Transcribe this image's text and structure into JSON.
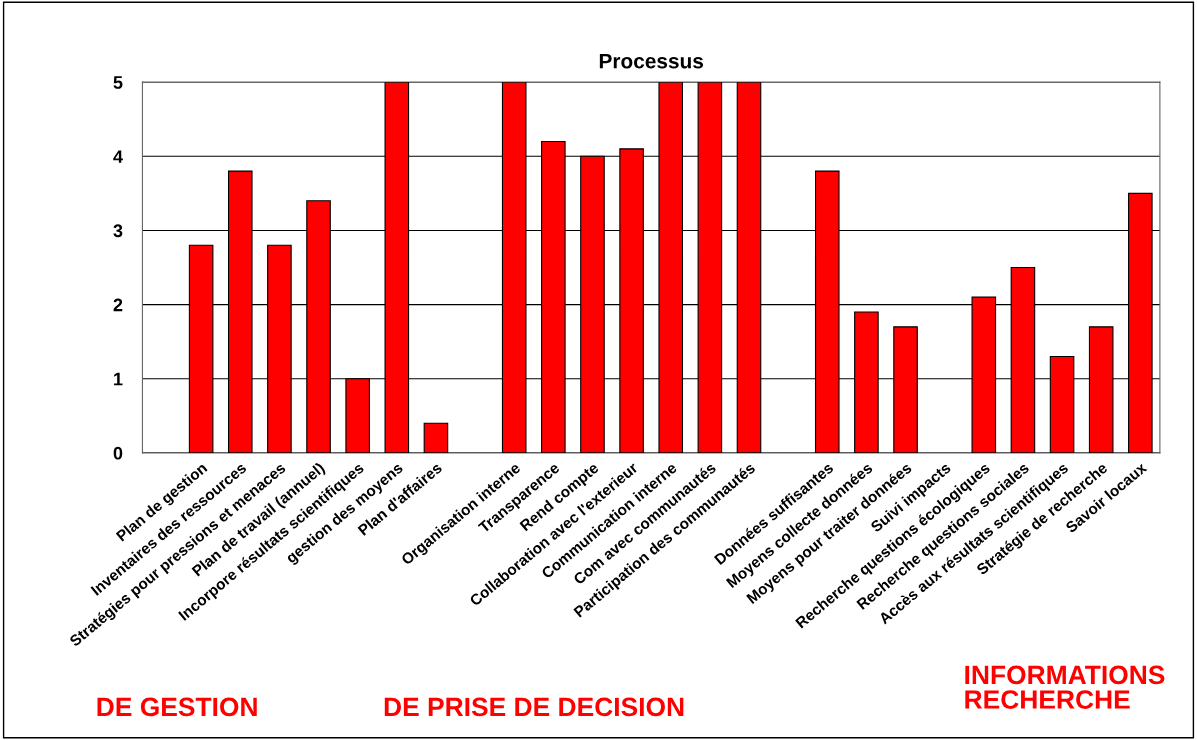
{
  "chart_data": {
    "type": "bar",
    "title": "Processus",
    "categories": [
      null,
      "Plan de gestion",
      "Inventaires des ressources",
      "Stratégies pour pressions et menaces",
      "Plan de travail (annuel)",
      "Incorpore résultats scientifiques",
      "gestion des moyens",
      "Plan d'affaires",
      null,
      "Organisation interne",
      "Transparence",
      "Rend compte",
      "Collaboration avec l'exterieur",
      "Communication interne",
      "Com avec communautés",
      "Participation des communautés",
      null,
      "Données suffisantes",
      "Moyens collecte données",
      "Moyens pour traiter données",
      "Suivi impacts",
      "Recherche questions écologiques",
      "Recherche questions sociales",
      "Accès aux résultats scientifiques",
      "Stratégie de recherche",
      "Savoir locaux"
    ],
    "values": [
      null,
      2.8,
      3.8,
      2.8,
      3.4,
      1.0,
      5,
      0.4,
      null,
      5,
      4.2,
      4.0,
      4.1,
      5,
      5,
      5,
      null,
      3.8,
      1.9,
      1.7,
      null,
      2.1,
      2.5,
      1.3,
      1.7,
      3.5
    ],
    "color": "#ff0000",
    "ylim": [
      0,
      5
    ],
    "yticks": [
      0,
      1,
      2,
      3,
      4,
      5
    ],
    "grid": "y",
    "legend": false,
    "annotations": [
      "DE GESTION",
      "DE PRISE DE DECISION",
      "INFORMATIONS\nRECHERCHE"
    ]
  }
}
